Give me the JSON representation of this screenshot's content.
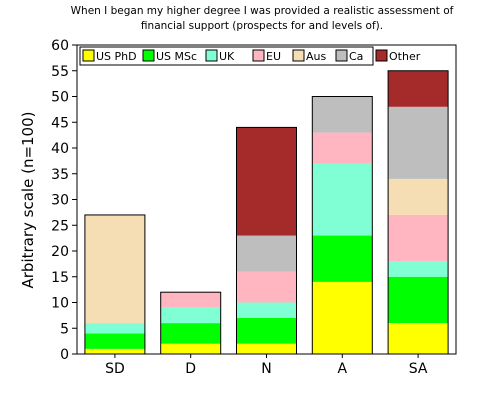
{
  "chart_data": {
    "type": "bar",
    "stacked": true,
    "title_lines": [
      "When I began my higher degree I was provided a realistic assessment of",
      "financial support (prospects for and levels of)."
    ],
    "xlabel": "",
    "ylabel": "Arbitrary scale (n=100)",
    "ylim": [
      0,
      60
    ],
    "yticks": [
      0,
      5,
      10,
      15,
      20,
      25,
      30,
      35,
      40,
      45,
      50,
      55,
      60
    ],
    "categories": [
      "SD",
      "D",
      "N",
      "A",
      "SA"
    ],
    "grid": false,
    "legend_placement": "top, inside plot",
    "series": [
      {
        "name": "US PhD",
        "color": "#ffff00",
        "values": [
          1,
          2,
          2,
          14,
          6
        ]
      },
      {
        "name": "US MSc",
        "color": "#00ff00",
        "values": [
          3,
          4,
          5,
          9,
          9
        ]
      },
      {
        "name": "UK",
        "color": "#80ffd4",
        "values": [
          2,
          3,
          3,
          14,
          3
        ]
      },
      {
        "name": "EU",
        "color": "#ffb6c1",
        "values": [
          0,
          3,
          6,
          6,
          9
        ]
      },
      {
        "name": "Aus",
        "color": "#f5deb3",
        "values": [
          21,
          0,
          0,
          0,
          7
        ]
      },
      {
        "name": "Ca",
        "color": "#bebebe",
        "values": [
          0,
          0,
          7,
          7,
          14
        ]
      },
      {
        "name": "Other",
        "color": "#a52a2a",
        "values": [
          0,
          0,
          21,
          0,
          7
        ]
      }
    ]
  }
}
